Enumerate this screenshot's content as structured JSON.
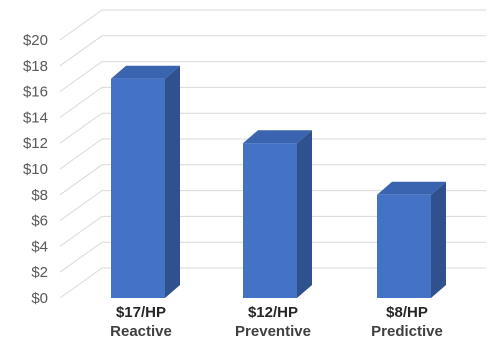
{
  "chart_data": {
    "type": "bar",
    "categories": [
      "$17/HP",
      "$12/HP",
      "$8/HP"
    ],
    "subcategories": [
      "Reactive",
      "Preventive",
      "Predictive"
    ],
    "values": [
      17,
      12,
      8
    ],
    "ylim": [
      0,
      20
    ],
    "yticks": [
      {
        "value": 0,
        "label": "$0"
      },
      {
        "value": 2,
        "label": "$2"
      },
      {
        "value": 4,
        "label": "$4"
      },
      {
        "value": 6,
        "label": "$6"
      },
      {
        "value": 8,
        "label": "$8"
      },
      {
        "value": 10,
        "label": "$10"
      },
      {
        "value": 12,
        "label": "$12"
      },
      {
        "value": 14,
        "label": "$14"
      },
      {
        "value": 16,
        "label": "$16"
      },
      {
        "value": 18,
        "label": "$18"
      },
      {
        "value": 20,
        "label": "$20"
      }
    ],
    "grid": true,
    "style": "3d-column",
    "colors": {
      "front": "#4472C4",
      "side": "#2F528F",
      "top": "#3A63B0",
      "grid": "#d9d9d9"
    }
  }
}
